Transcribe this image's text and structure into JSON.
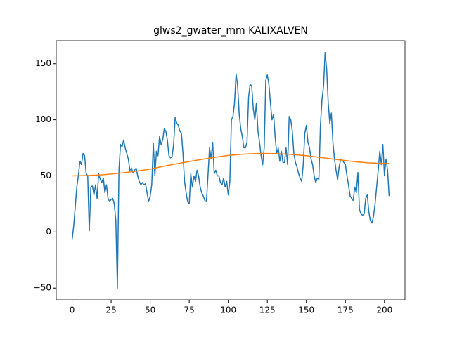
{
  "chart_data": {
    "type": "line",
    "title": "glws2_gwater_mm KALIXALVEN",
    "xlim": [
      -10.15,
      213.15
    ],
    "ylim": [
      -60.5,
      170.5
    ],
    "xticks": [
      0,
      25,
      50,
      75,
      100,
      125,
      150,
      175,
      200
    ],
    "yticks": [
      {
        "value": -50,
        "label": "−50"
      },
      0,
      50,
      100,
      150
    ],
    "series": [
      {
        "color": "#1f77b4",
        "x": [
          0,
          1,
          2,
          3,
          4,
          5,
          6,
          7,
          8,
          9,
          10,
          11,
          12,
          13,
          14,
          15,
          16,
          17,
          18,
          19,
          20,
          21,
          22,
          23,
          24,
          25,
          26,
          27,
          28,
          29,
          30,
          31,
          32,
          33,
          34,
          35,
          36,
          37,
          38,
          39,
          40,
          41,
          42,
          43,
          44,
          45,
          46,
          47,
          48,
          49,
          50,
          51,
          52,
          53,
          54,
          55,
          56,
          57,
          58,
          59,
          60,
          61,
          62,
          63,
          64,
          65,
          66,
          67,
          68,
          69,
          70,
          71,
          72,
          73,
          74,
          75,
          76,
          77,
          78,
          79,
          80,
          81,
          82,
          83,
          84,
          85,
          86,
          87,
          88,
          89,
          90,
          91,
          92,
          93,
          94,
          95,
          96,
          97,
          98,
          99,
          100,
          101,
          102,
          103,
          104,
          105,
          106,
          107,
          108,
          109,
          110,
          111,
          112,
          113,
          114,
          115,
          116,
          117,
          118,
          119,
          120,
          121,
          122,
          123,
          124,
          125,
          126,
          127,
          128,
          129,
          130,
          131,
          132,
          133,
          134,
          135,
          136,
          137,
          138,
          139,
          140,
          141,
          142,
          143,
          144,
          145,
          146,
          147,
          148,
          149,
          150,
          151,
          152,
          153,
          154,
          155,
          156,
          157,
          158,
          159,
          160,
          161,
          162,
          163,
          164,
          165,
          166,
          167,
          168,
          169,
          170,
          171,
          172,
          173,
          174,
          175,
          176,
          177,
          178,
          179,
          180,
          181,
          182,
          183,
          184,
          185,
          186,
          187,
          188,
          189,
          190,
          191,
          192,
          193,
          194,
          195,
          196,
          197,
          198,
          199,
          200,
          201,
          202,
          203
        ],
        "values": [
          -7,
          5,
          22,
          40,
          50,
          63,
          60,
          70,
          68,
          52,
          50,
          1,
          40,
          41,
          33,
          42,
          30,
          52,
          47,
          44,
          48,
          35,
          42,
          30,
          27,
          29,
          30,
          25,
          10,
          -50,
          55,
          78,
          76,
          82,
          75,
          70,
          65,
          55,
          57,
          53,
          55,
          57,
          50,
          45,
          42,
          44,
          42,
          43,
          35,
          27,
          32,
          42,
          79,
          50,
          72,
          68,
          85,
          78,
          82,
          92,
          90,
          82,
          68,
          66,
          67,
          78,
          102,
          97,
          95,
          90,
          88,
          70,
          45,
          35,
          27,
          25,
          52,
          40,
          50,
          45,
          55,
          50,
          40,
          35,
          32,
          28,
          27,
          50,
          75,
          65,
          80,
          52,
          55,
          50,
          50,
          44,
          42,
          48,
          40,
          45,
          33,
          45,
          100,
          103,
          115,
          141,
          130,
          105,
          92,
          85,
          75,
          75,
          80,
          120,
          132,
          130,
          110,
          100,
          115,
          90,
          80,
          68,
          60,
          75,
          135,
          140,
          132,
          115,
          100,
          105,
          85,
          70,
          75,
          63,
          72,
          62,
          62,
          75,
          60,
          103,
          100,
          90,
          70,
          62,
          58,
          52,
          48,
          45,
          60,
          88,
          95,
          80,
          75,
          65,
          60,
          50,
          44,
          48,
          47,
          95,
          118,
          130,
          160,
          145,
          115,
          97,
          106,
          80,
          65,
          55,
          47,
          58,
          65,
          64,
          62,
          60,
          50,
          42,
          32,
          30,
          28,
          40,
          35,
          53,
          20,
          16,
          15,
          16,
          30,
          33,
          18,
          10,
          8,
          14,
          25,
          40,
          55,
          72,
          60,
          78,
          50,
          65,
          55,
          32
        ]
      },
      {
        "color": "#ff7f0e",
        "x": [
          0,
          10,
          20,
          30,
          40,
          50,
          60,
          70,
          80,
          90,
          100,
          110,
          120,
          130,
          140,
          150,
          160,
          170,
          180,
          190,
          200,
          203
        ],
        "values": [
          50,
          50.3,
          51,
          52.3,
          54,
          56,
          59,
          61.5,
          64,
          66.3,
          68.2,
          69.4,
          70,
          69.9,
          69.2,
          68,
          66.3,
          64.5,
          62.8,
          61.6,
          61,
          61
        ]
      }
    ]
  }
}
